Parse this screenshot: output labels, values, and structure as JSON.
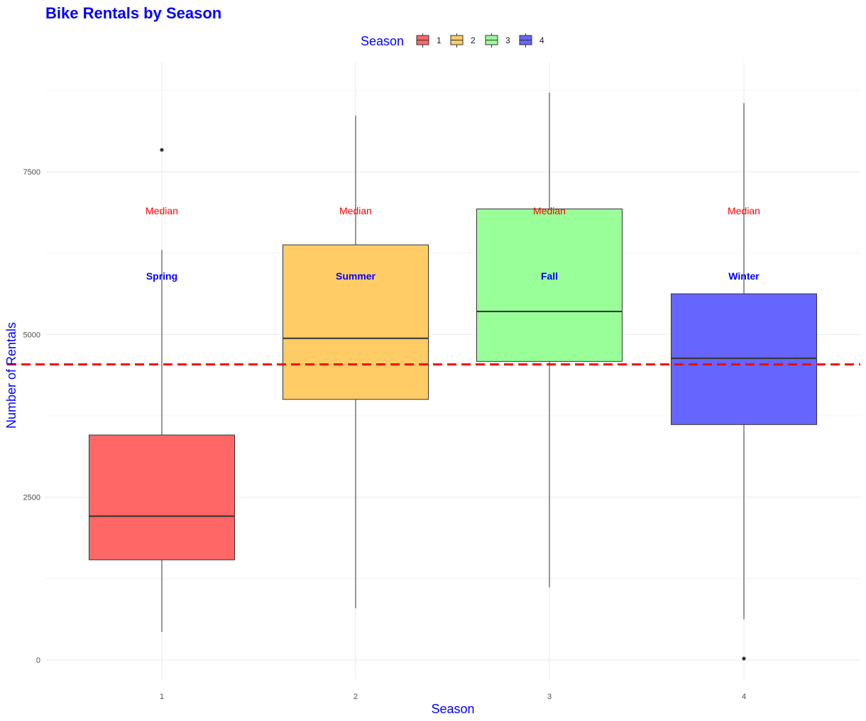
{
  "chart_data": {
    "type": "boxplot",
    "title": "Bike Rentals by Season",
    "xlabel": "Season",
    "ylabel": "Number of Rentals",
    "categories": [
      "1",
      "2",
      "3",
      "4"
    ],
    "ylim": [
      -300,
      9300
    ],
    "yticks": [
      0,
      2500,
      5000,
      7500
    ],
    "grid": true,
    "legend": {
      "title": "Season",
      "position": "top",
      "entries": [
        "1",
        "2",
        "3",
        "4"
      ]
    },
    "colors": [
      "#ff6666",
      "#ffcc66",
      "#99ff99",
      "#6666ff"
    ],
    "title_color": "#0000ff",
    "label_color": "#0000ff",
    "boxes": [
      {
        "category": "1",
        "whisker_low": 431,
        "q1": 1538,
        "median": 2209,
        "q3": 3456,
        "whisker_high": 6300,
        "outliers": [
          7836
        ]
      },
      {
        "category": "2",
        "whisker_low": 795,
        "q1": 4003,
        "median": 4941,
        "q3": 6377,
        "whisker_high": 8362,
        "outliers": []
      },
      {
        "category": "3",
        "whisker_low": 1115,
        "q1": 4586,
        "median": 5354,
        "q3": 6929,
        "whisker_high": 8714,
        "outliers": []
      },
      {
        "category": "4",
        "whisker_low": 627,
        "q1": 3616,
        "median": 4634,
        "q3": 5625,
        "whisker_high": 8555,
        "outliers": [
          22
        ]
      }
    ],
    "reference_line": {
      "value": 4540,
      "color": "#ff0000",
      "style": "dashed"
    },
    "annotations": {
      "median_text": "Median",
      "median_y": 6900,
      "median_color": "#ff0000",
      "season_names": [
        "Spring",
        "Summer",
        "Fall",
        "Winter"
      ],
      "season_y": 5900,
      "season_color": "#0000ff"
    }
  }
}
